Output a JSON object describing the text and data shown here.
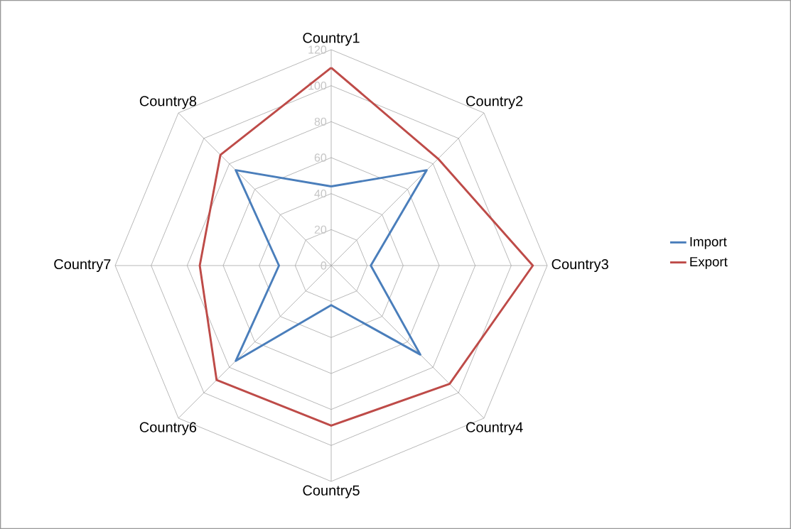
{
  "chart_data": {
    "type": "radar",
    "categories": [
      "Country1",
      "Country2",
      "Country3",
      "Country4",
      "Country5",
      "Country6",
      "Country7",
      "Country8"
    ],
    "series": [
      {
        "name": "Import",
        "color": "#4a7ebb",
        "values": [
          44,
          75,
          22,
          70,
          22,
          75,
          29,
          75
        ]
      },
      {
        "name": "Export",
        "color": "#be4b48",
        "values": [
          110,
          84,
          112,
          93,
          89,
          90,
          73,
          87
        ]
      }
    ],
    "ylim": [
      0,
      120
    ],
    "yticks": [
      0,
      20,
      40,
      60,
      80,
      100,
      120
    ],
    "grid": true,
    "legend": "right",
    "line_style": "solid",
    "marker": "none"
  }
}
